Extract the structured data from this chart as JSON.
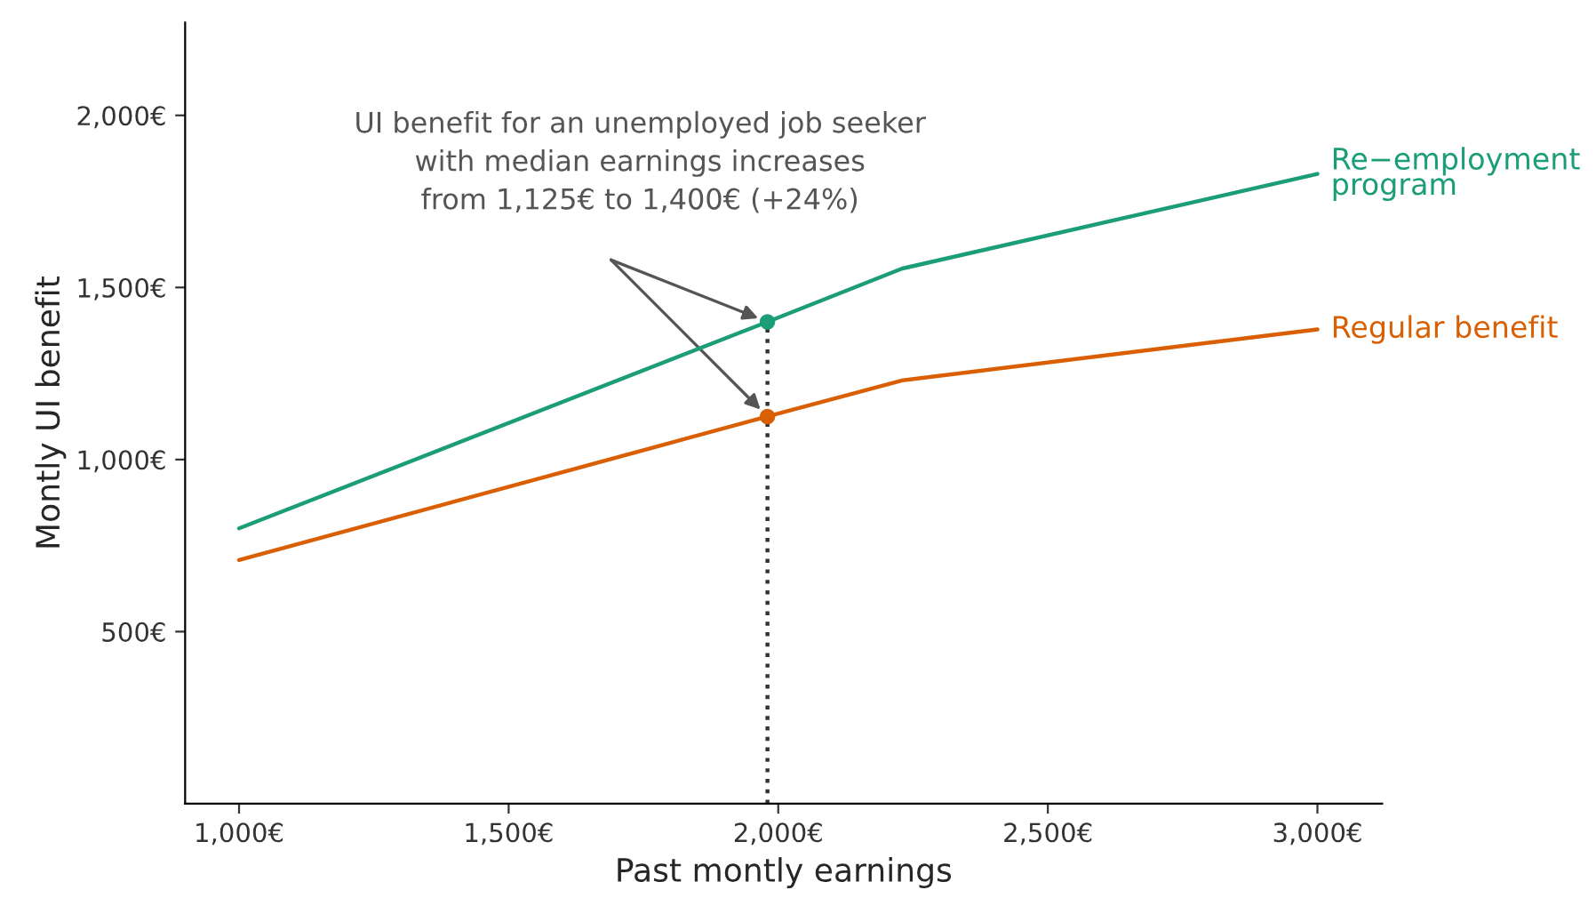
{
  "chart_data": {
    "type": "line",
    "xlabel": "Past montly earnings",
    "ylabel": "Montly UI benefit",
    "xlim": [
      900,
      3120
    ],
    "ylim": [
      0,
      2270
    ],
    "xticks": [
      {
        "value": 1000,
        "label": "1,000€"
      },
      {
        "value": 1500,
        "label": "1,500€"
      },
      {
        "value": 2000,
        "label": "2,000€"
      },
      {
        "value": 2500,
        "label": "2,500€"
      },
      {
        "value": 3000,
        "label": "3,000€"
      }
    ],
    "yticks": [
      {
        "value": 500,
        "label": "500€"
      },
      {
        "value": 1000,
        "label": "1,000€"
      },
      {
        "value": 1500,
        "label": "1,500€"
      },
      {
        "value": 2000,
        "label": "2,000€"
      }
    ],
    "grid": false,
    "legend": false,
    "marker": "none",
    "line_style": "solid",
    "series": [
      {
        "name": "Re−employment\nprogram",
        "color": "#1b9e77",
        "x": [
          1000,
          1980,
          2230,
          3000
        ],
        "values": [
          800,
          1400,
          1555,
          1830
        ]
      },
      {
        "name": "Regular benefit",
        "color": "#d95f02",
        "x": [
          1000,
          1980,
          2230,
          3000
        ],
        "values": [
          708,
          1125,
          1230,
          1378
        ]
      },
      {
        "type": "scatter",
        "color": "#1b9e77",
        "x": [
          1980
        ],
        "values": [
          1400
        ],
        "marker": "circle"
      },
      {
        "type": "scatter",
        "color": "#d95f02",
        "x": [
          1980
        ],
        "values": [
          1125
        ],
        "marker": "circle"
      }
    ],
    "ref_lines": [
      {
        "axis": "x",
        "value": 1980,
        "color": "#333333",
        "line_style": "dotted"
      }
    ],
    "annotations": [
      "UI benefit for an unemployed job seeker\nwith median earnings increases\nfrom 1,125€ to 1,400€ (+24%)"
    ]
  }
}
